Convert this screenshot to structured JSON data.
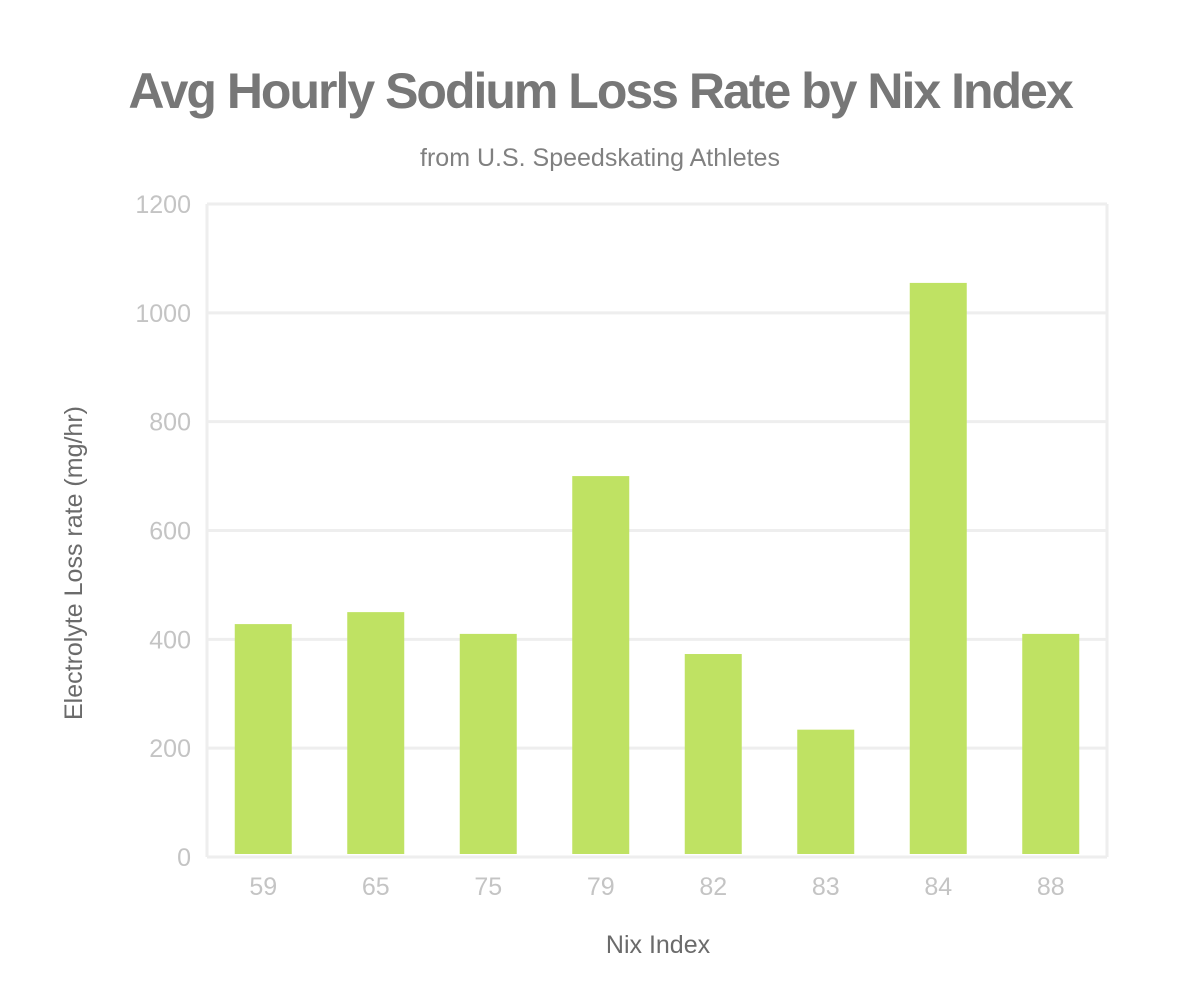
{
  "chart_data": {
    "type": "bar",
    "title": "Avg Hourly Sodium Loss Rate by Nix Index",
    "subtitle": "from U.S. Speedskating Athletes",
    "xlabel": "Nix Index",
    "ylabel": "Electrolyte Loss rate (mg/hr)",
    "categories": [
      "59",
      "65",
      "75",
      "79",
      "82",
      "83",
      "84",
      "88"
    ],
    "values": [
      428,
      450,
      410,
      700,
      373,
      234,
      1055,
      410
    ],
    "ylim": [
      0,
      1200
    ],
    "yticks": [
      0,
      200,
      400,
      600,
      800,
      1000,
      1200
    ],
    "grid": true,
    "legend": "none",
    "colors": {
      "bar": "#bfe263",
      "grid": "#eeeeee",
      "tick_label": "#c4c4c4",
      "axis_title": "#6b6b6b",
      "title": "#777777",
      "subtitle": "#808080"
    }
  }
}
